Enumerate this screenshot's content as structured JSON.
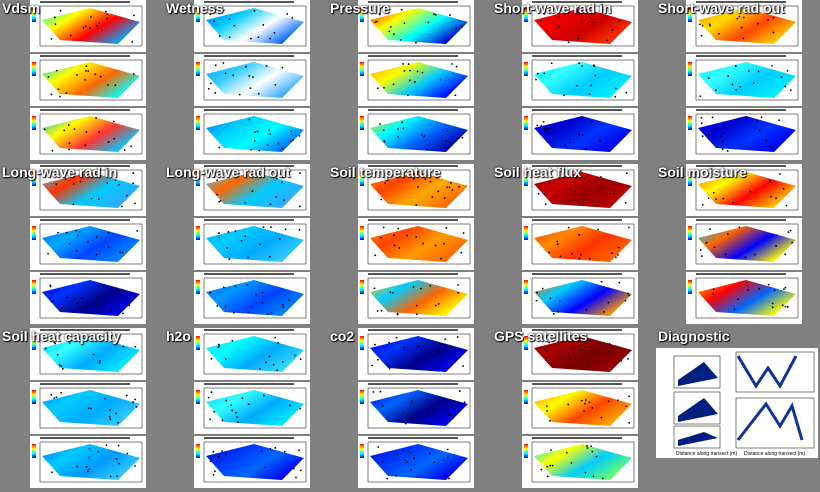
{
  "panels": [
    {
      "title": "Vdsm"
    },
    {
      "title": "Wetness"
    },
    {
      "title": "Pressure"
    },
    {
      "title": "Short-wave rad in"
    },
    {
      "title": "Short-wave rad out"
    },
    {
      "title": "Long-wave rad in"
    },
    {
      "title": "Long-wave rad out"
    },
    {
      "title": "Soil temperature"
    },
    {
      "title": "Soil heat flux"
    },
    {
      "title": "Soil moisture"
    },
    {
      "title": "Soil heat capacity"
    },
    {
      "title": "h2o"
    },
    {
      "title": "co2"
    },
    {
      "title": "GPS satellites"
    },
    {
      "title": "Diagnostic"
    }
  ],
  "diagnostic": {
    "x_label": "Distance along transect (m)"
  }
}
